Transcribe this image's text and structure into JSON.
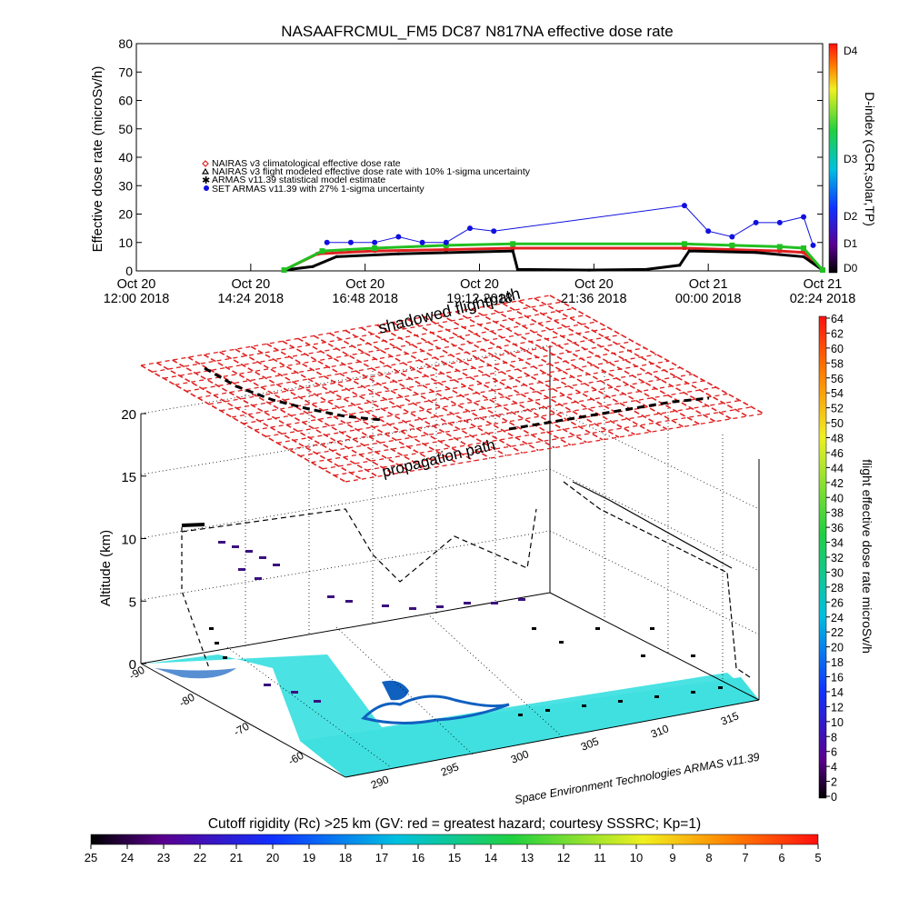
{
  "top_chart": {
    "title": "NASAAFRCMUL_FM5 DC87 N817NA effective dose rate",
    "ylabel": "Effective dose rate (microSv/h)",
    "right_label": "D-index (GCR,solar,TP)",
    "legend": [
      {
        "label": "NAIRAS v3 climatological effective dose rate",
        "color": "#e02020",
        "marker": "diamond"
      },
      {
        "label": "NAIRAS v3 flight modeled effective dose rate with 10% 1-sigma uncertainty",
        "color": "#000000",
        "marker": "triangle"
      },
      {
        "label": "ARMAS v11.39 statistical model estimate",
        "color": "#22c022",
        "marker": "star"
      },
      {
        "label": "SET ARMAS v11.39 with 27% 1-sigma uncertainty",
        "color": "#1010e0",
        "marker": "dot"
      }
    ],
    "dindex_labels": [
      "D4",
      "D3",
      "D2",
      "D1",
      "D0"
    ],
    "x_ticks": [
      {
        "line1": "Oct 20",
        "line2": "12:00 2018"
      },
      {
        "line1": "Oct 20",
        "line2": "14:24 2018"
      },
      {
        "line1": "Oct 20",
        "line2": "16:48 2018"
      },
      {
        "line1": "Oct 20",
        "line2": "19:12 2018"
      },
      {
        "line1": "Oct 20",
        "line2": "21:36 2018"
      },
      {
        "line1": "Oct 21",
        "line2": "00:00 2018"
      },
      {
        "line1": "Oct 21",
        "line2": "02:24 2018"
      }
    ]
  },
  "chart_data": [
    {
      "type": "scatter",
      "title": "NASAAFRCMUL_FM5 DC87 N817NA effective dose rate",
      "ylabel": "Effective dose rate (microSv/h)",
      "ylim": [
        0,
        80
      ],
      "yticks": [
        0,
        10,
        20,
        30,
        40,
        50,
        60,
        70,
        80
      ],
      "xlim_hours_after_oct20_1200": [
        0,
        14.4
      ],
      "series": [
        {
          "name": "NAIRAS v3 climatological effective dose rate",
          "x": [
            3.1,
            3.8,
            5.0,
            6.5,
            7.9,
            11.5,
            12.5,
            13.5,
            14.0,
            14.4
          ],
          "values": [
            0.3,
            6,
            7,
            7.5,
            8,
            8,
            7.5,
            7,
            6.5,
            0.3
          ]
        },
        {
          "name": "NAIRAS v3 flight modeled effective dose rate with 10% 1-sigma uncertainty",
          "x": [
            3.1,
            3.7,
            4.2,
            5.5,
            7.9,
            8.0,
            9.5,
            10.7,
            11.4,
            11.6,
            13.0,
            14.0,
            14.4
          ],
          "values": [
            0.3,
            1.5,
            5,
            6,
            7,
            0.5,
            0.3,
            0.5,
            2,
            7,
            6.5,
            5,
            0.3
          ]
        },
        {
          "name": "ARMAS v11.39 statistical model estimate",
          "x": [
            3.1,
            3.9,
            5.0,
            6.5,
            7.9,
            11.5,
            12.5,
            13.5,
            14.0,
            14.4
          ],
          "values": [
            0.3,
            7,
            8,
            9,
            9.5,
            9.5,
            9,
            8.5,
            8,
            0.3
          ]
        },
        {
          "name": "SET ARMAS v11.39 with 27% 1-sigma uncertainty",
          "x": [
            4.0,
            4.5,
            5.0,
            5.5,
            6.0,
            6.5,
            7.0,
            7.5,
            11.5,
            12.0,
            12.5,
            13.0,
            13.5,
            14.0,
            14.2
          ],
          "values": [
            10,
            10,
            10,
            12,
            10,
            10,
            15,
            14,
            23,
            14,
            12,
            17,
            17,
            19,
            9
          ]
        }
      ]
    },
    {
      "type": "scatter",
      "title": "",
      "ylabel": "Altitude (km)",
      "zticks": [
        0,
        5,
        10,
        15,
        20
      ],
      "lon_ticks": [
        290,
        295,
        300,
        305,
        310,
        315
      ],
      "lat_ticks": [
        -90,
        -80,
        -70,
        -60
      ],
      "annotations": [
        "shadowed flightpath",
        "propagation path"
      ],
      "flight_track_alt_km": {
        "cruise": 11,
        "surface": 0
      },
      "dose_colorbar": {
        "label": "flight effective dose rate microSv/h",
        "range": [
          0,
          64
        ],
        "ticks": [
          64,
          62,
          60,
          58,
          56,
          54,
          52,
          50,
          48,
          46,
          44,
          42,
          40,
          38,
          36,
          34,
          32,
          30,
          28,
          26,
          24,
          22,
          20,
          18,
          16,
          14,
          12,
          10,
          8,
          6,
          4,
          2,
          0
        ]
      },
      "rigidity_colorbar": {
        "label": "Cutoff rigidity (Rc) >25 km (GV: red = greatest hazard; courtesy SSSRC; Kp=1)",
        "ticks": [
          25,
          24,
          23,
          22,
          21,
          20,
          19,
          18,
          17,
          16,
          15,
          14,
          13,
          12,
          11,
          10,
          9,
          8,
          7,
          6,
          5
        ]
      },
      "credit": "Space Environment Technologies ARMAS v11.39"
    }
  ],
  "colors": {
    "propagation_mesh": "#e02020",
    "surface_fill": "#40e0e0",
    "coast": "#1060c0"
  }
}
